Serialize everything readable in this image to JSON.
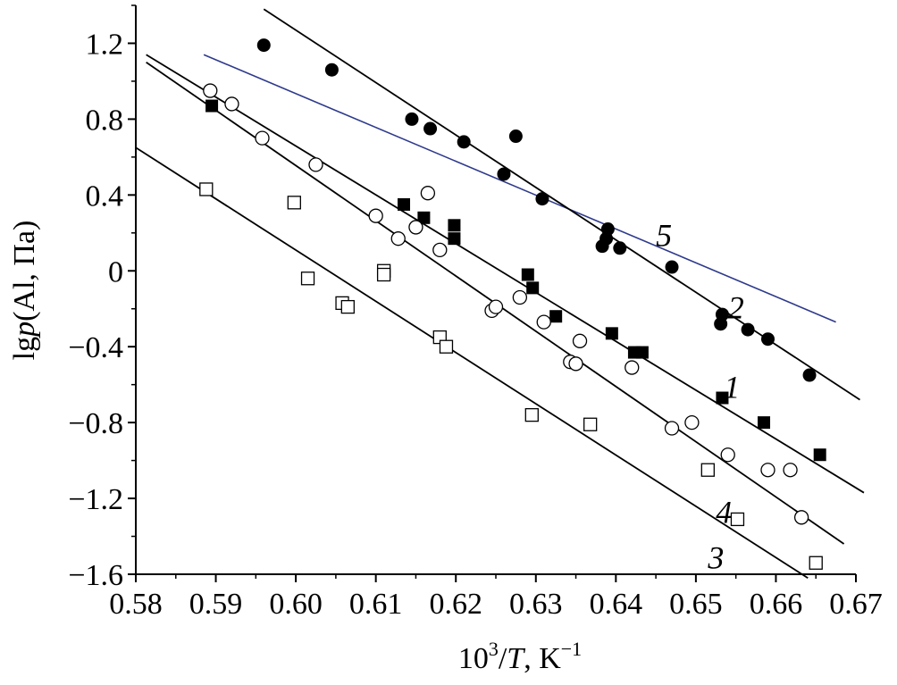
{
  "chart_data": {
    "type": "scatter",
    "xlabel_parts": {
      "pre": "10",
      "sup1": "3",
      "mid": "/",
      "ital": "T",
      "post": ", K",
      "sup2": "−1"
    },
    "ylabel_parts": {
      "pre": "lg",
      "ital": "p",
      "post": "(Al, Па)"
    },
    "xlim": [
      0.58,
      0.67
    ],
    "ylim": [
      -1.6,
      1.4
    ],
    "x_ticks": [
      0.58,
      0.59,
      0.6,
      0.61,
      0.62,
      0.63,
      0.64,
      0.65,
      0.66,
      0.67
    ],
    "x_tick_labels": [
      "0.58",
      "0.59",
      "0.60",
      "0.61",
      "0.62",
      "0.63",
      "0.64",
      "0.65",
      "0.66",
      "0.67"
    ],
    "y_ticks": [
      1.2,
      0.8,
      0.4,
      0,
      -0.4,
      -0.8,
      -1.2,
      -1.6
    ],
    "y_tick_labels": [
      "1.2",
      "0.8",
      "0.4",
      "0",
      "−0.4",
      "−0.8",
      "−1.2",
      "−1.6"
    ],
    "grid": false,
    "colors": {
      "axis": "#000000",
      "black_line": "#000000",
      "line5": "#2e3a8c"
    },
    "series": [
      {
        "marker": "filled-circle",
        "points": [
          [
            0.596,
            1.19
          ],
          [
            0.6045,
            1.06
          ],
          [
            0.6145,
            0.8
          ],
          [
            0.6168,
            0.75
          ],
          [
            0.621,
            0.68
          ],
          [
            0.6275,
            0.71
          ],
          [
            0.626,
            0.51
          ],
          [
            0.6308,
            0.38
          ],
          [
            0.6383,
            0.13
          ],
          [
            0.6388,
            0.17
          ],
          [
            0.639,
            0.22
          ],
          [
            0.6405,
            0.12
          ],
          [
            0.647,
            0.02
          ],
          [
            0.6533,
            -0.23
          ],
          [
            0.6531,
            -0.28
          ],
          [
            0.6565,
            -0.31
          ],
          [
            0.659,
            -0.36
          ],
          [
            0.6642,
            -0.55
          ]
        ]
      },
      {
        "marker": "filled-square",
        "points": [
          [
            0.5895,
            0.87
          ],
          [
            0.6135,
            0.35
          ],
          [
            0.616,
            0.28
          ],
          [
            0.6198,
            0.24
          ],
          [
            0.6198,
            0.17
          ],
          [
            0.629,
            -0.02
          ],
          [
            0.6296,
            -0.09
          ],
          [
            0.6325,
            -0.24
          ],
          [
            0.6395,
            -0.33
          ],
          [
            0.6423,
            -0.43
          ],
          [
            0.6433,
            -0.43
          ],
          [
            0.6533,
            -0.67
          ],
          [
            0.6585,
            -0.8
          ],
          [
            0.6655,
            -0.97
          ]
        ]
      },
      {
        "marker": "open-circle",
        "points": [
          [
            0.5893,
            0.95
          ],
          [
            0.592,
            0.88
          ],
          [
            0.5958,
            0.7
          ],
          [
            0.6025,
            0.56
          ],
          [
            0.61,
            0.29
          ],
          [
            0.6128,
            0.17
          ],
          [
            0.615,
            0.23
          ],
          [
            0.6165,
            0.41
          ],
          [
            0.618,
            0.11
          ],
          [
            0.6245,
            -0.21
          ],
          [
            0.625,
            -0.19
          ],
          [
            0.628,
            -0.14
          ],
          [
            0.631,
            -0.27
          ],
          [
            0.6343,
            -0.48
          ],
          [
            0.635,
            -0.49
          ],
          [
            0.6355,
            -0.37
          ],
          [
            0.642,
            -0.51
          ],
          [
            0.647,
            -0.83
          ],
          [
            0.6495,
            -0.8
          ],
          [
            0.654,
            -0.97
          ],
          [
            0.659,
            -1.05
          ],
          [
            0.6618,
            -1.05
          ],
          [
            0.6632,
            -1.3
          ]
        ]
      },
      {
        "marker": "open-square",
        "points": [
          [
            0.5888,
            0.43
          ],
          [
            0.5998,
            0.36
          ],
          [
            0.6015,
            -0.04
          ],
          [
            0.6058,
            -0.17
          ],
          [
            0.6065,
            -0.19
          ],
          [
            0.611,
            0.0
          ],
          [
            0.611,
            -0.02
          ],
          [
            0.618,
            -0.35
          ],
          [
            0.6188,
            -0.4
          ],
          [
            0.6295,
            -0.76
          ],
          [
            0.6368,
            -0.81
          ],
          [
            0.6515,
            -1.05
          ],
          [
            0.6552,
            -1.31
          ],
          [
            0.665,
            -1.54
          ]
        ]
      }
    ],
    "lines": [
      {
        "name": "5",
        "x": [
          0.5885,
          0.6675
        ],
        "y": [
          1.14,
          -0.27
        ],
        "color": "#2e3a8c",
        "label_at": [
          0.645,
          0.13
        ]
      },
      {
        "name": "2",
        "x": [
          0.596,
          0.6705
        ],
        "y": [
          1.38,
          -0.68
        ],
        "color": "#000000",
        "label_at": [
          0.654,
          -0.25
        ]
      },
      {
        "name": "1",
        "x": [
          0.5813,
          0.671
        ],
        "y": [
          1.14,
          -1.17
        ],
        "color": "#000000",
        "label_at": [
          0.6535,
          -0.67
        ]
      },
      {
        "name": "4",
        "x": [
          0.5813,
          0.6685
        ],
        "y": [
          1.1,
          -1.44
        ],
        "color": "#000000",
        "label_at": [
          0.6525,
          -1.33
        ]
      },
      {
        "name": "3",
        "x": [
          0.58,
          0.664
        ],
        "y": [
          0.65,
          -1.62
        ],
        "color": "#000000",
        "label_at": [
          0.6515,
          -1.57
        ]
      }
    ]
  }
}
